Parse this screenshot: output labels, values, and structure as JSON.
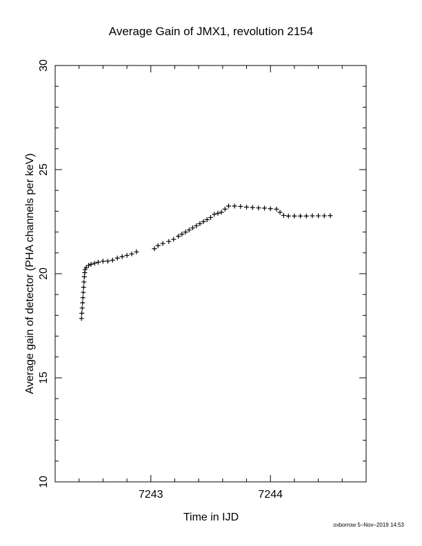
{
  "chart_data": {
    "type": "scatter",
    "title": "Average Gain of JMX1, revolution 2154",
    "xlabel": "Time in IJD",
    "ylabel": "Average gain of detector (PHA channels per keV)",
    "xlim": [
      7242.2,
      7244.8
    ],
    "ylim": [
      10,
      30
    ],
    "xticks": [
      7243,
      7244
    ],
    "yticks": [
      10,
      15,
      20,
      25,
      30
    ],
    "marker": "plus",
    "grid": false,
    "series": [
      {
        "points": [
          [
            7242.42,
            17.85
          ],
          [
            7242.423,
            18.1
          ],
          [
            7242.426,
            18.35
          ],
          [
            7242.429,
            18.6
          ],
          [
            7242.432,
            18.85
          ],
          [
            7242.435,
            19.1
          ],
          [
            7242.438,
            19.35
          ],
          [
            7242.441,
            19.6
          ],
          [
            7242.444,
            19.85
          ],
          [
            7242.447,
            20.05
          ],
          [
            7242.45,
            20.2
          ],
          [
            7242.46,
            20.3
          ],
          [
            7242.48,
            20.4
          ],
          [
            7242.5,
            20.45
          ],
          [
            7242.53,
            20.5
          ],
          [
            7242.56,
            20.55
          ],
          [
            7242.6,
            20.6
          ],
          [
            7242.64,
            20.6
          ],
          [
            7242.68,
            20.65
          ],
          [
            7242.72,
            20.75
          ],
          [
            7242.76,
            20.82
          ],
          [
            7242.8,
            20.88
          ],
          [
            7242.84,
            20.95
          ],
          [
            7242.88,
            21.05
          ],
          [
            7243.03,
            21.2
          ],
          [
            7243.06,
            21.35
          ],
          [
            7243.1,
            21.45
          ],
          [
            7243.15,
            21.55
          ],
          [
            7243.19,
            21.65
          ],
          [
            7243.23,
            21.8
          ],
          [
            7243.26,
            21.9
          ],
          [
            7243.29,
            22.0
          ],
          [
            7243.32,
            22.1
          ],
          [
            7243.35,
            22.2
          ],
          [
            7243.38,
            22.3
          ],
          [
            7243.41,
            22.4
          ],
          [
            7243.44,
            22.5
          ],
          [
            7243.47,
            22.6
          ],
          [
            7243.5,
            22.7
          ],
          [
            7243.53,
            22.85
          ],
          [
            7243.56,
            22.9
          ],
          [
            7243.59,
            22.95
          ],
          [
            7243.62,
            23.1
          ],
          [
            7243.65,
            23.25
          ],
          [
            7243.7,
            23.25
          ],
          [
            7243.75,
            23.23
          ],
          [
            7243.8,
            23.2
          ],
          [
            7243.85,
            23.18
          ],
          [
            7243.9,
            23.16
          ],
          [
            7243.95,
            23.15
          ],
          [
            7244.0,
            23.12
          ],
          [
            7244.05,
            23.1
          ],
          [
            7244.08,
            22.95
          ],
          [
            7244.11,
            22.8
          ],
          [
            7244.15,
            22.77
          ],
          [
            7244.2,
            22.77
          ],
          [
            7244.25,
            22.77
          ],
          [
            7244.3,
            22.77
          ],
          [
            7244.35,
            22.78
          ],
          [
            7244.4,
            22.78
          ],
          [
            7244.45,
            22.78
          ],
          [
            7244.5,
            22.79
          ]
        ]
      }
    ]
  },
  "footer": {
    "credit": "oxborrow  5–Nov–2019 14:53"
  }
}
